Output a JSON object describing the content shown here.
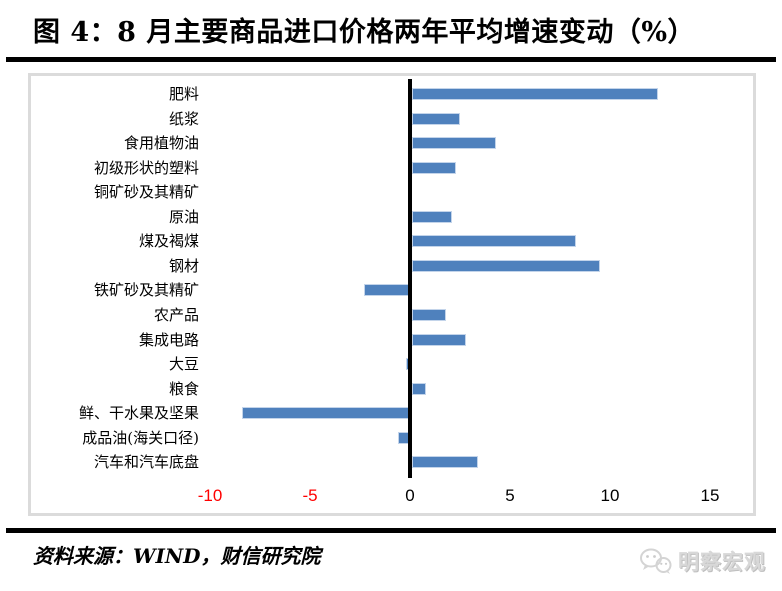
{
  "header": {
    "title": "图 4：8 月主要商品进口价格两年平均增速变动（%）"
  },
  "chart_data": {
    "type": "bar",
    "orientation": "horizontal",
    "title": "8 月主要商品进口价格两年平均增速变动（%）",
    "categories": [
      "肥料",
      "纸浆",
      "食用植物油",
      "初级形状的塑料",
      "铜矿砂及其精矿",
      "原油",
      "煤及褐煤",
      "钢材",
      "铁矿砂及其精矿",
      "农产品",
      "集成电路",
      "大豆",
      "粮食",
      "鲜、干水果及坚果",
      "成品油(海关口径)",
      "汽车和汽车底盘"
    ],
    "values": [
      12.2,
      2.3,
      4.1,
      2.1,
      0.0,
      1.9,
      8.1,
      9.3,
      -2.2,
      1.6,
      2.6,
      -0.1,
      0.6,
      -8.3,
      -0.5,
      3.2
    ],
    "x_ticks": [
      -10,
      -5,
      0,
      5,
      10,
      15
    ],
    "xlim": [
      -10,
      15
    ],
    "xlabel": "",
    "ylabel": "",
    "grid": false,
    "legend": false,
    "bar_color": "#4f81bd",
    "bar_border_color": "#c3d4ea",
    "tick_color": "#000000",
    "negative_tick_color": "#ff0000"
  },
  "footer": {
    "source": "资料来源：WIND，财信研究院",
    "logo_text": "明察宏观",
    "logo_icon": "wechat-chat-bubbles-icon"
  }
}
